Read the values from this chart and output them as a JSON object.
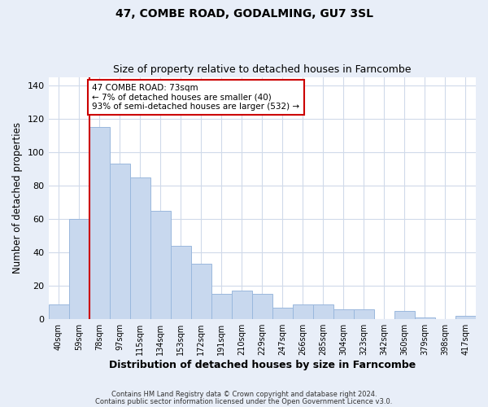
{
  "title": "47, COMBE ROAD, GODALMING, GU7 3SL",
  "subtitle": "Size of property relative to detached houses in Farncombe",
  "xlabel": "Distribution of detached houses by size in Farncombe",
  "ylabel": "Number of detached properties",
  "bar_labels": [
    "40sqm",
    "59sqm",
    "78sqm",
    "97sqm",
    "115sqm",
    "134sqm",
    "153sqm",
    "172sqm",
    "191sqm",
    "210sqm",
    "229sqm",
    "247sqm",
    "266sqm",
    "285sqm",
    "304sqm",
    "323sqm",
    "342sqm",
    "360sqm",
    "379sqm",
    "398sqm",
    "417sqm"
  ],
  "bar_values": [
    9,
    60,
    115,
    93,
    85,
    65,
    44,
    33,
    15,
    17,
    15,
    7,
    9,
    9,
    6,
    6,
    0,
    5,
    1,
    0,
    2
  ],
  "bar_color": "#c8d8ee",
  "bar_edge_color": "#9ab8dd",
  "vline_x": 1.5,
  "vline_color": "#cc0000",
  "ylim": [
    0,
    145
  ],
  "yticks": [
    0,
    20,
    40,
    60,
    80,
    100,
    120,
    140
  ],
  "annotation_text": "47 COMBE ROAD: 73sqm\n← 7% of detached houses are smaller (40)\n93% of semi-detached houses are larger (532) →",
  "annotation_box_facecolor": "#ffffff",
  "annotation_box_edgecolor": "#cc0000",
  "footer_line1": "Contains HM Land Registry data © Crown copyright and database right 2024.",
  "footer_line2": "Contains public sector information licensed under the Open Government Licence v3.0.",
  "fig_facecolor": "#e8eef8",
  "ax_facecolor": "#ffffff",
  "grid_color": "#d0daea"
}
